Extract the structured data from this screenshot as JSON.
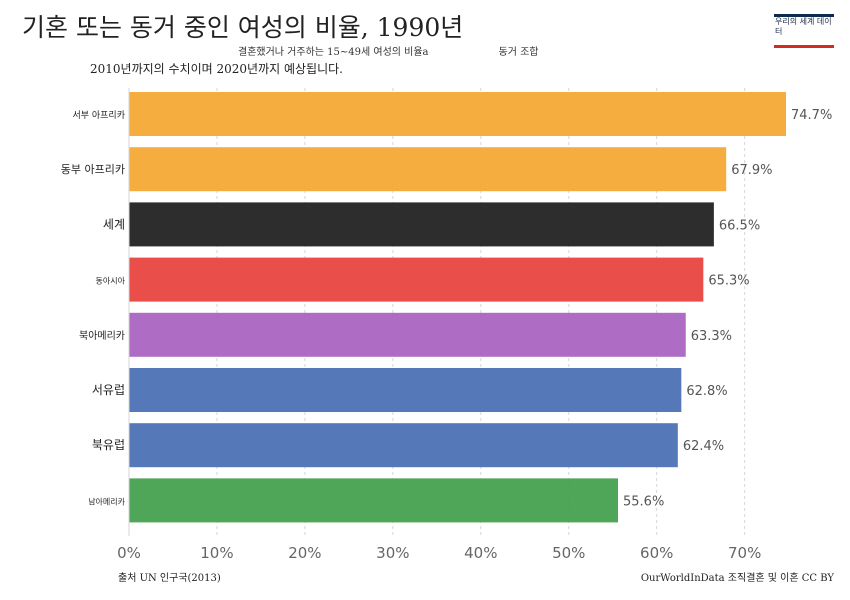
{
  "title": "기혼 또는 동거 중인 여성의 비율, 1990년",
  "subtitle_line1_a": "결혼했거나 거주하는 15~49세 여성의 비율a",
  "subtitle_line1_b": "동거 조합",
  "subtitle_line2": "2010년까지의 수치이며 2020년까지 예상됩니다.",
  "logo_text": "우리의 세계 데이터",
  "source": "출처 UN 인구국(2013)",
  "license": "OurWorldInData 조직결혼 및 이혼 CC BY",
  "colors": {
    "west_africa": "#f6a936",
    "east_africa": "#f6a936",
    "world": "#222222",
    "east_asia": "#e84441",
    "north_america": "#ab64c2",
    "western_europe": "#4c72b4",
    "northern_europe": "#4c72b4",
    "south_america": "#46a04f"
  },
  "chart_data": {
    "type": "bar",
    "orientation": "horizontal",
    "categories": [
      "서부 아프리카",
      "동부 아프리카",
      "세계",
      "동아시아",
      "북아메리카",
      "서유럽",
      "북유럽",
      "남아메리카"
    ],
    "values": [
      74.7,
      67.9,
      66.5,
      65.3,
      63.3,
      62.8,
      62.4,
      55.6
    ],
    "value_labels": [
      "74.7%",
      "67.9%",
      "66.5%",
      "65.3%",
      "63.3%",
      "62.8%",
      "62.4%",
      "55.6%"
    ],
    "bar_colors": [
      "#f6a936",
      "#f6a936",
      "#222222",
      "#e84441",
      "#ab64c2",
      "#4c72b4",
      "#4c72b4",
      "#46a04f"
    ],
    "xlim": [
      0,
      75
    ],
    "xticks": [
      0,
      10,
      20,
      30,
      40,
      50,
      60,
      70
    ],
    "xtick_labels": [
      "0%",
      "10%",
      "20%",
      "30%",
      "40%",
      "50%",
      "60%",
      "70%"
    ],
    "grid": true,
    "title": "기혼 또는 동거 중인 여성의 비율, 1990년",
    "xlabel": "",
    "ylabel": ""
  }
}
